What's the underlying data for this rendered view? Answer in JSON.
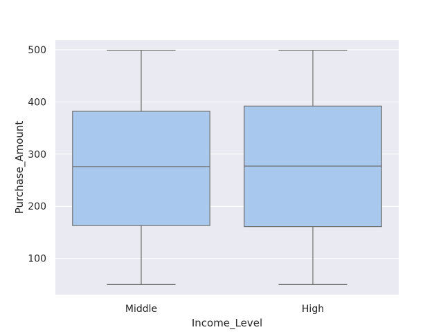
{
  "chart_data": {
    "type": "box",
    "title": "",
    "xlabel": "Income_Level",
    "ylabel": "Purchase_Amount",
    "categories": [
      "Middle",
      "High"
    ],
    "boxes": [
      {
        "category": "Middle",
        "whisker_low": 50,
        "q1": 163,
        "median": 276,
        "q3": 382,
        "whisker_high": 499
      },
      {
        "category": "High",
        "whisker_low": 50,
        "q1": 161,
        "median": 277,
        "q3": 392,
        "whisker_high": 499
      }
    ],
    "yticks": [
      100,
      200,
      300,
      400,
      500
    ],
    "ylim": [
      30.6,
      518.4
    ],
    "grid": true,
    "colors": {
      "background": "#eaeaf2",
      "grid": "#ffffff",
      "box_fill": "#a9c8ed",
      "line": "#6e6e6e",
      "text": "#262626"
    }
  }
}
